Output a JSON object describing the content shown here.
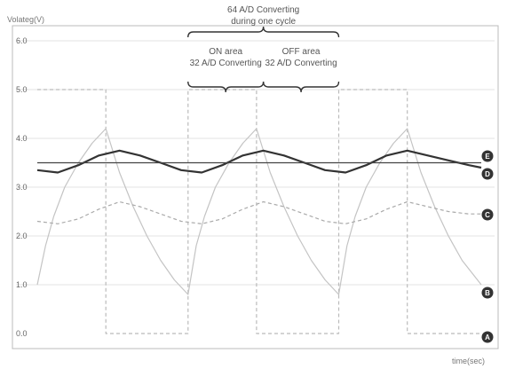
{
  "chart_data": {
    "type": "line",
    "title": "",
    "ylabel": "Volateg(V)",
    "xlabel": "time(sec)",
    "ylim": [
      0,
      6
    ],
    "xlim": [
      0,
      3.24
    ],
    "yticks": [
      "6.0",
      "5.0",
      "4.0",
      "3.0",
      "2.0",
      "1.0",
      "0.0"
    ],
    "grid": "horizontal",
    "series": [
      {
        "name": "A",
        "style": "dashed",
        "color": "#bbbbbb",
        "x": [
          0,
          0.5,
          0.5,
          1.1,
          1.1,
          1.6,
          1.6,
          2.2,
          2.2,
          2.7,
          2.7,
          3.24
        ],
        "y": [
          5,
          5,
          0,
          0,
          5,
          5,
          0,
          0,
          5,
          5,
          0,
          0
        ]
      },
      {
        "name": "B",
        "style": "solid",
        "color": "#c4c4c4",
        "x": [
          0,
          0.06,
          0.12,
          0.2,
          0.3,
          0.4,
          0.5,
          0.6,
          0.7,
          0.8,
          0.9,
          1.0,
          1.1,
          1.16,
          1.22,
          1.3,
          1.4,
          1.5,
          1.6,
          1.7,
          1.8,
          1.9,
          2.0,
          2.1,
          2.2,
          2.26,
          2.32,
          2.4,
          2.5,
          2.6,
          2.7,
          2.8,
          2.9,
          3.0,
          3.1,
          3.24
        ],
        "y": [
          1.0,
          1.8,
          2.4,
          3.0,
          3.5,
          3.9,
          4.2,
          3.3,
          2.6,
          2.0,
          1.5,
          1.1,
          0.8,
          1.8,
          2.4,
          3.0,
          3.5,
          3.9,
          4.2,
          3.3,
          2.6,
          2.0,
          1.5,
          1.1,
          0.8,
          1.8,
          2.4,
          3.0,
          3.5,
          3.9,
          4.2,
          3.3,
          2.6,
          2.0,
          1.5,
          1.0
        ]
      },
      {
        "name": "C",
        "style": "dashed",
        "color": "#aaaaaa",
        "x": [
          0,
          0.15,
          0.3,
          0.45,
          0.6,
          0.75,
          0.9,
          1.05,
          1.2,
          1.35,
          1.5,
          1.65,
          1.8,
          1.95,
          2.1,
          2.25,
          2.4,
          2.55,
          2.7,
          2.85,
          3.0,
          3.15,
          3.24
        ],
        "y": [
          2.3,
          2.25,
          2.35,
          2.55,
          2.7,
          2.6,
          2.45,
          2.3,
          2.25,
          2.35,
          2.55,
          2.7,
          2.6,
          2.45,
          2.3,
          2.25,
          2.35,
          2.55,
          2.7,
          2.6,
          2.5,
          2.45,
          2.45
        ]
      },
      {
        "name": "D",
        "style": "solid",
        "color": "#333333",
        "x": [
          0,
          0.15,
          0.3,
          0.45,
          0.6,
          0.75,
          0.9,
          1.05,
          1.2,
          1.35,
          1.5,
          1.65,
          1.8,
          1.95,
          2.1,
          2.25,
          2.4,
          2.55,
          2.7,
          2.85,
          3.0,
          3.15,
          3.24
        ],
        "y": [
          3.35,
          3.3,
          3.45,
          3.65,
          3.75,
          3.65,
          3.5,
          3.35,
          3.3,
          3.45,
          3.65,
          3.75,
          3.65,
          3.5,
          3.35,
          3.3,
          3.45,
          3.65,
          3.75,
          3.65,
          3.55,
          3.45,
          3.4
        ]
      },
      {
        "name": "E",
        "style": "solid",
        "color": "#444444",
        "x": [
          0,
          3.24
        ],
        "y": [
          3.5,
          3.5
        ]
      }
    ],
    "annotations": [
      {
        "id": "cycle",
        "lines": [
          "64 A/D Converting",
          "during one cycle"
        ],
        "x_from": 1.1,
        "x_to": 2.2
      },
      {
        "id": "on",
        "lines": [
          "ON area",
          "32 A/D Converting"
        ],
        "x_from": 1.1,
        "x_to": 1.65
      },
      {
        "id": "off",
        "lines": [
          "OFF area",
          "32 A/D Converting"
        ],
        "x_from": 1.65,
        "x_to": 2.2
      }
    ]
  }
}
